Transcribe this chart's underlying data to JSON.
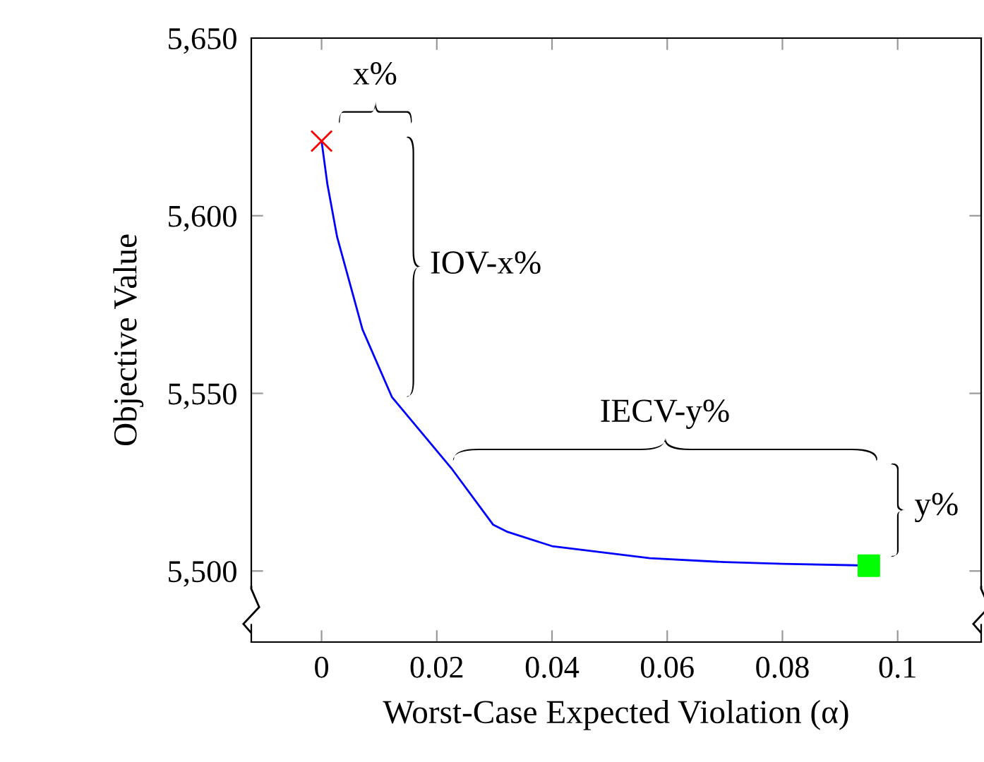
{
  "chart_data": {
    "type": "line",
    "xlabel": "Worst-Case Expected Violation (α)",
    "ylabel": "Objective Value",
    "xlim": [
      -0.0122,
      0.1145
    ],
    "ylim": [
      5480,
      5650
    ],
    "xticks": [
      0,
      0.02,
      0.04,
      0.06,
      0.08,
      0.1
    ],
    "yticks": [
      {
        "value": 5500,
        "label": "5,500"
      },
      {
        "value": 5550,
        "label": "5,550"
      },
      {
        "value": 5600,
        "label": "5,600"
      },
      {
        "value": 5650,
        "label": "5,650"
      }
    ],
    "grid": false,
    "legend": false,
    "series": [
      {
        "type": "line",
        "color": "#0000ff",
        "marker": "none",
        "x": [
          0,
          0.001,
          0.0027,
          0.0071,
          0.0122,
          0.0225,
          0.0298,
          0.0323,
          0.04,
          0.057,
          0.07,
          0.08,
          0.093,
          0.095
        ],
        "values": [
          5621,
          5609,
          5594,
          5568,
          5549,
          5529,
          5513,
          5511,
          5507,
          5503.6,
          5502.5,
          5502,
          5501.6,
          5501.5
        ]
      },
      {
        "type": "scatter",
        "color": "#ff0000",
        "marker": "cross",
        "x": [
          0
        ],
        "values": [
          5621
        ]
      },
      {
        "type": "scatter",
        "color": "#00ff00",
        "marker": "square",
        "x": [
          0.095
        ],
        "values": [
          5501.5
        ]
      }
    ],
    "annotations": [
      "x%",
      "IOV-x%",
      "IECV-y%",
      "y%"
    ]
  }
}
